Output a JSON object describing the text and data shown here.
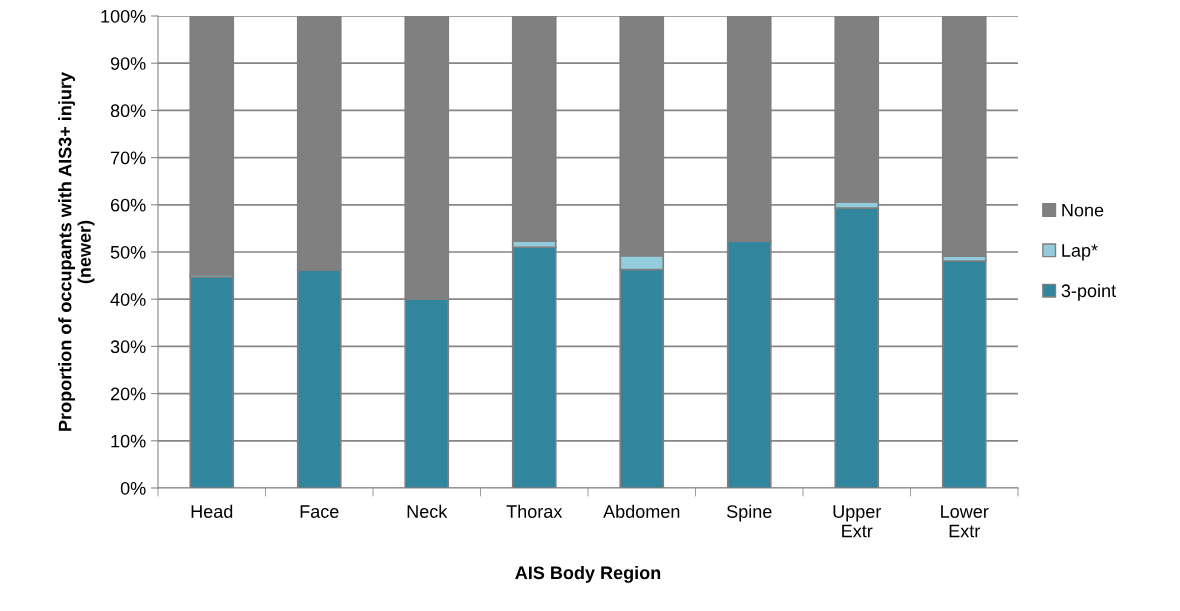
{
  "chart_data": {
    "type": "bar",
    "stacked": true,
    "xlabel": "AIS Body Region",
    "ylabel": "Proportion of occupants with AIS3+ injury\n(newer)",
    "categories": [
      "Head",
      "Face",
      "Neck",
      "Thorax",
      "Abdomen",
      "Spine",
      "Upper\nExtr",
      "Lower\nExtr"
    ],
    "series": [
      {
        "name": "3-point",
        "color": "#31859c",
        "values": [
          44.7,
          46.2,
          40.0,
          51.0,
          46.3,
          52.3,
          59.3,
          48.1
        ]
      },
      {
        "name": "Lap*",
        "color": "#93cddd",
        "values": [
          0.5,
          0,
          0,
          1.3,
          2.9,
          null,
          1.3,
          1.0
        ]
      },
      {
        "name": "None",
        "color": "#808080",
        "values": [
          54.8,
          53.8,
          60.0,
          47.7,
          50.8,
          47.7,
          39.4,
          50.9
        ]
      }
    ],
    "ylim": [
      0,
      100
    ],
    "yticks": [
      {
        "value": 0,
        "label": "0%"
      },
      {
        "value": 10,
        "label": "10%"
      },
      {
        "value": 20,
        "label": "20%"
      },
      {
        "value": 30,
        "label": "30%"
      },
      {
        "value": 40,
        "label": "40%"
      },
      {
        "value": 50,
        "label": "50%"
      },
      {
        "value": 60,
        "label": "60%"
      },
      {
        "value": 70,
        "label": "70%"
      },
      {
        "value": 80,
        "label": "80%"
      },
      {
        "value": 90,
        "label": "90%"
      },
      {
        "value": 100,
        "label": "100%"
      }
    ],
    "grid": "y",
    "legend": "right"
  }
}
